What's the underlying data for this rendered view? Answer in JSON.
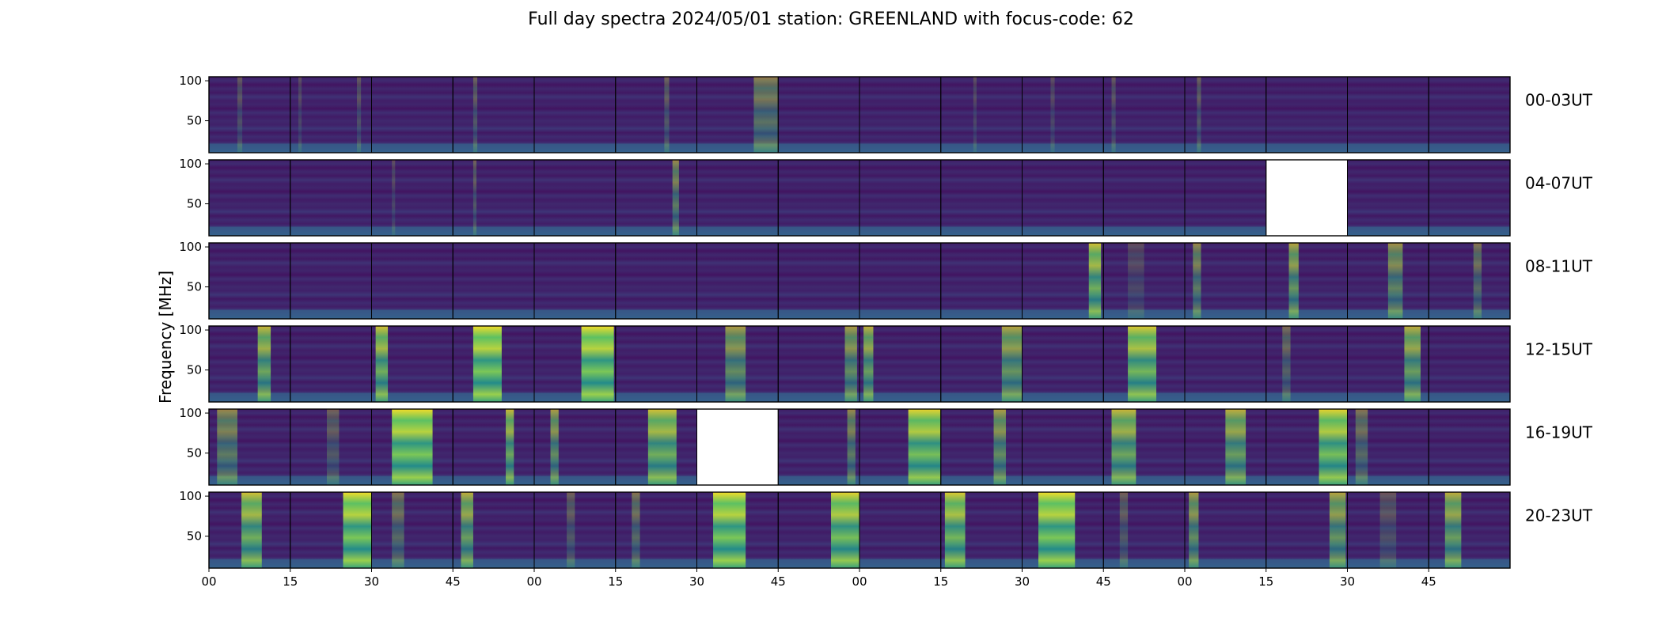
{
  "chart_data": {
    "type": "heatmap",
    "title": "Full day spectra 2024/05/01 station: GREENLAND with focus-code: 62",
    "ylabel": "Frequency [MHz]",
    "xlabel": "",
    "ylim": [
      10,
      105
    ],
    "yticks": [
      50,
      100
    ],
    "xticks": [
      "00",
      "15",
      "30",
      "45",
      "00",
      "15",
      "30",
      "45",
      "00",
      "15",
      "30",
      "45",
      "00",
      "15",
      "30",
      "45"
    ],
    "colormap": "viridis",
    "panels_per_row": 16,
    "panel_minutes": 15,
    "rows": [
      {
        "label": "00-03UT",
        "missing_panels": []
      },
      {
        "label": "04-07UT",
        "missing_panels": [
          13
        ]
      },
      {
        "label": "08-11UT",
        "missing_panels": []
      },
      {
        "label": "12-15UT",
        "missing_panels": []
      },
      {
        "label": "16-19UT",
        "missing_panels": [
          6
        ]
      },
      {
        "label": "20-23UT",
        "missing_panels": []
      }
    ],
    "bursts": [
      [
        {
          "p": 0,
          "s": 0.35,
          "w": 0.06,
          "a": 0.25
        },
        {
          "p": 1,
          "s": 0.1,
          "w": 0.04,
          "a": 0.2
        },
        {
          "p": 1,
          "s": 0.82,
          "w": 0.05,
          "a": 0.25
        },
        {
          "p": 3,
          "s": 0.25,
          "w": 0.05,
          "a": 0.3
        },
        {
          "p": 5,
          "s": 0.6,
          "w": 0.06,
          "a": 0.3
        },
        {
          "p": 6,
          "s": 0.7,
          "w": 0.3,
          "a": 0.45
        },
        {
          "p": 9,
          "s": 0.4,
          "w": 0.04,
          "a": 0.2
        },
        {
          "p": 10,
          "s": 0.35,
          "w": 0.05,
          "a": 0.2
        },
        {
          "p": 11,
          "s": 0.1,
          "w": 0.05,
          "a": 0.25
        },
        {
          "p": 12,
          "s": 0.15,
          "w": 0.05,
          "a": 0.3
        }
      ],
      [
        {
          "p": 2,
          "s": 0.25,
          "w": 0.04,
          "a": 0.2
        },
        {
          "p": 3,
          "s": 0.25,
          "w": 0.04,
          "a": 0.3
        },
        {
          "p": 5,
          "s": 0.7,
          "w": 0.08,
          "a": 0.5
        }
      ],
      [
        {
          "p": 10,
          "s": 0.82,
          "w": 0.15,
          "a": 0.8
        },
        {
          "p": 11,
          "s": 0.3,
          "w": 0.2,
          "a": 0.2
        },
        {
          "p": 12,
          "s": 0.1,
          "w": 0.1,
          "a": 0.5
        },
        {
          "p": 13,
          "s": 0.28,
          "w": 0.12,
          "a": 0.65
        },
        {
          "p": 14,
          "s": 0.5,
          "w": 0.18,
          "a": 0.55
        },
        {
          "p": 15,
          "s": 0.55,
          "w": 0.1,
          "a": 0.4
        }
      ],
      [
        {
          "p": 0,
          "s": 0.6,
          "w": 0.16,
          "a": 0.75
        },
        {
          "p": 2,
          "s": 0.05,
          "w": 0.15,
          "a": 0.8
        },
        {
          "p": 3,
          "s": 0.25,
          "w": 0.35,
          "a": 0.95
        },
        {
          "p": 4,
          "s": 0.58,
          "w": 0.4,
          "a": 0.95
        },
        {
          "p": 6,
          "s": 0.35,
          "w": 0.25,
          "a": 0.6
        },
        {
          "p": 7,
          "s": 0.82,
          "w": 0.15,
          "a": 0.6
        },
        {
          "p": 8,
          "s": 0.05,
          "w": 0.12,
          "a": 0.7
        },
        {
          "p": 9,
          "s": 0.75,
          "w": 0.25,
          "a": 0.65
        },
        {
          "p": 11,
          "s": 0.3,
          "w": 0.35,
          "a": 0.85
        },
        {
          "p": 13,
          "s": 0.2,
          "w": 0.1,
          "a": 0.35
        },
        {
          "p": 14,
          "s": 0.7,
          "w": 0.2,
          "a": 0.7
        }
      ],
      [
        {
          "p": 0,
          "s": 0.1,
          "w": 0.25,
          "a": 0.5
        },
        {
          "p": 1,
          "s": 0.45,
          "w": 0.15,
          "a": 0.3
        },
        {
          "p": 2,
          "s": 0.25,
          "w": 0.5,
          "a": 0.95
        },
        {
          "p": 3,
          "s": 0.65,
          "w": 0.1,
          "a": 0.75
        },
        {
          "p": 4,
          "s": 0.2,
          "w": 0.1,
          "a": 0.6
        },
        {
          "p": 5,
          "s": 0.4,
          "w": 0.35,
          "a": 0.8
        },
        {
          "p": 7,
          "s": 0.85,
          "w": 0.1,
          "a": 0.5
        },
        {
          "p": 8,
          "s": 0.6,
          "w": 0.4,
          "a": 0.9
        },
        {
          "p": 9,
          "s": 0.65,
          "w": 0.15,
          "a": 0.6
        },
        {
          "p": 11,
          "s": 0.1,
          "w": 0.3,
          "a": 0.75
        },
        {
          "p": 12,
          "s": 0.5,
          "w": 0.25,
          "a": 0.7
        },
        {
          "p": 13,
          "s": 0.65,
          "w": 0.35,
          "a": 0.9
        },
        {
          "p": 14,
          "s": 0.1,
          "w": 0.15,
          "a": 0.4
        }
      ],
      [
        {
          "p": 0,
          "s": 0.4,
          "w": 0.25,
          "a": 0.8
        },
        {
          "p": 1,
          "s": 0.65,
          "w": 0.35,
          "a": 0.95
        },
        {
          "p": 2,
          "s": 0.25,
          "w": 0.15,
          "a": 0.4
        },
        {
          "p": 3,
          "s": 0.1,
          "w": 0.15,
          "a": 0.7
        },
        {
          "p": 4,
          "s": 0.4,
          "w": 0.1,
          "a": 0.3
        },
        {
          "p": 5,
          "s": 0.2,
          "w": 0.1,
          "a": 0.4
        },
        {
          "p": 6,
          "s": 0.2,
          "w": 0.4,
          "a": 0.95
        },
        {
          "p": 7,
          "s": 0.65,
          "w": 0.35,
          "a": 0.9
        },
        {
          "p": 9,
          "s": 0.05,
          "w": 0.25,
          "a": 0.85
        },
        {
          "p": 10,
          "s": 0.2,
          "w": 0.45,
          "a": 0.95
        },
        {
          "p": 11,
          "s": 0.2,
          "w": 0.1,
          "a": 0.3
        },
        {
          "p": 12,
          "s": 0.05,
          "w": 0.12,
          "a": 0.6
        },
        {
          "p": 13,
          "s": 0.78,
          "w": 0.2,
          "a": 0.65
        },
        {
          "p": 14,
          "s": 0.4,
          "w": 0.2,
          "a": 0.25
        },
        {
          "p": 15,
          "s": 0.2,
          "w": 0.2,
          "a": 0.7
        }
      ]
    ]
  }
}
